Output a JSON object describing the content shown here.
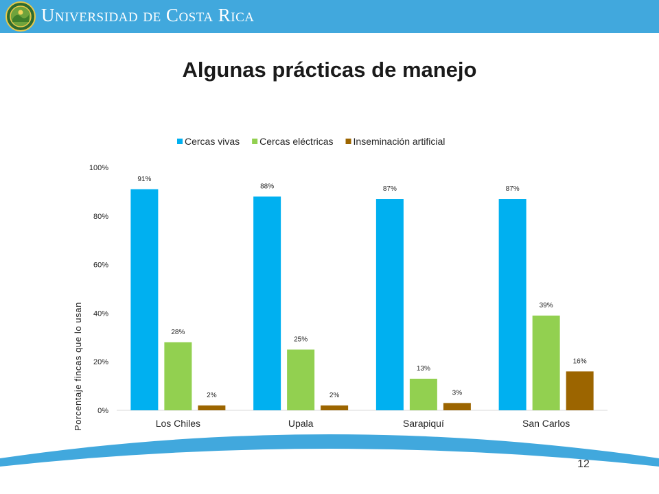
{
  "header": {
    "university": "Universidad de Costa Rica"
  },
  "slide": {
    "title": "Algunas prácticas de manejo",
    "page_number": "12"
  },
  "colors": {
    "header": "#41a8dd",
    "cercas_vivas": "#00b0f0",
    "cercas_electricas": "#92d050",
    "inseminacion": "#9c6500"
  },
  "chart_data": {
    "type": "bar",
    "title": "",
    "xlabel": "",
    "ylabel": "Porcentaje fincas que lo usan",
    "ylim": [
      0,
      100
    ],
    "yticks": [
      "0%",
      "20%",
      "40%",
      "60%",
      "80%",
      "100%"
    ],
    "legend_position": "top",
    "grid": false,
    "categories": [
      "Los Chiles",
      "Upala",
      "Sarapiquí",
      "San Carlos"
    ],
    "series": [
      {
        "name": "Cercas vivas",
        "color": "#00b0f0",
        "values": [
          91,
          88,
          87,
          87
        ],
        "labels": [
          "91%",
          "88%",
          "87%",
          "87%"
        ]
      },
      {
        "name": "Cercas eléctricas",
        "color": "#92d050",
        "values": [
          28,
          25,
          13,
          39
        ],
        "labels": [
          "28%",
          "25%",
          "13%",
          "39%"
        ]
      },
      {
        "name": "Inseminación artificial",
        "color": "#9c6500",
        "values": [
          2,
          2,
          3,
          16
        ],
        "labels": [
          "2%",
          "2%",
          "3%",
          "16%"
        ]
      }
    ]
  }
}
